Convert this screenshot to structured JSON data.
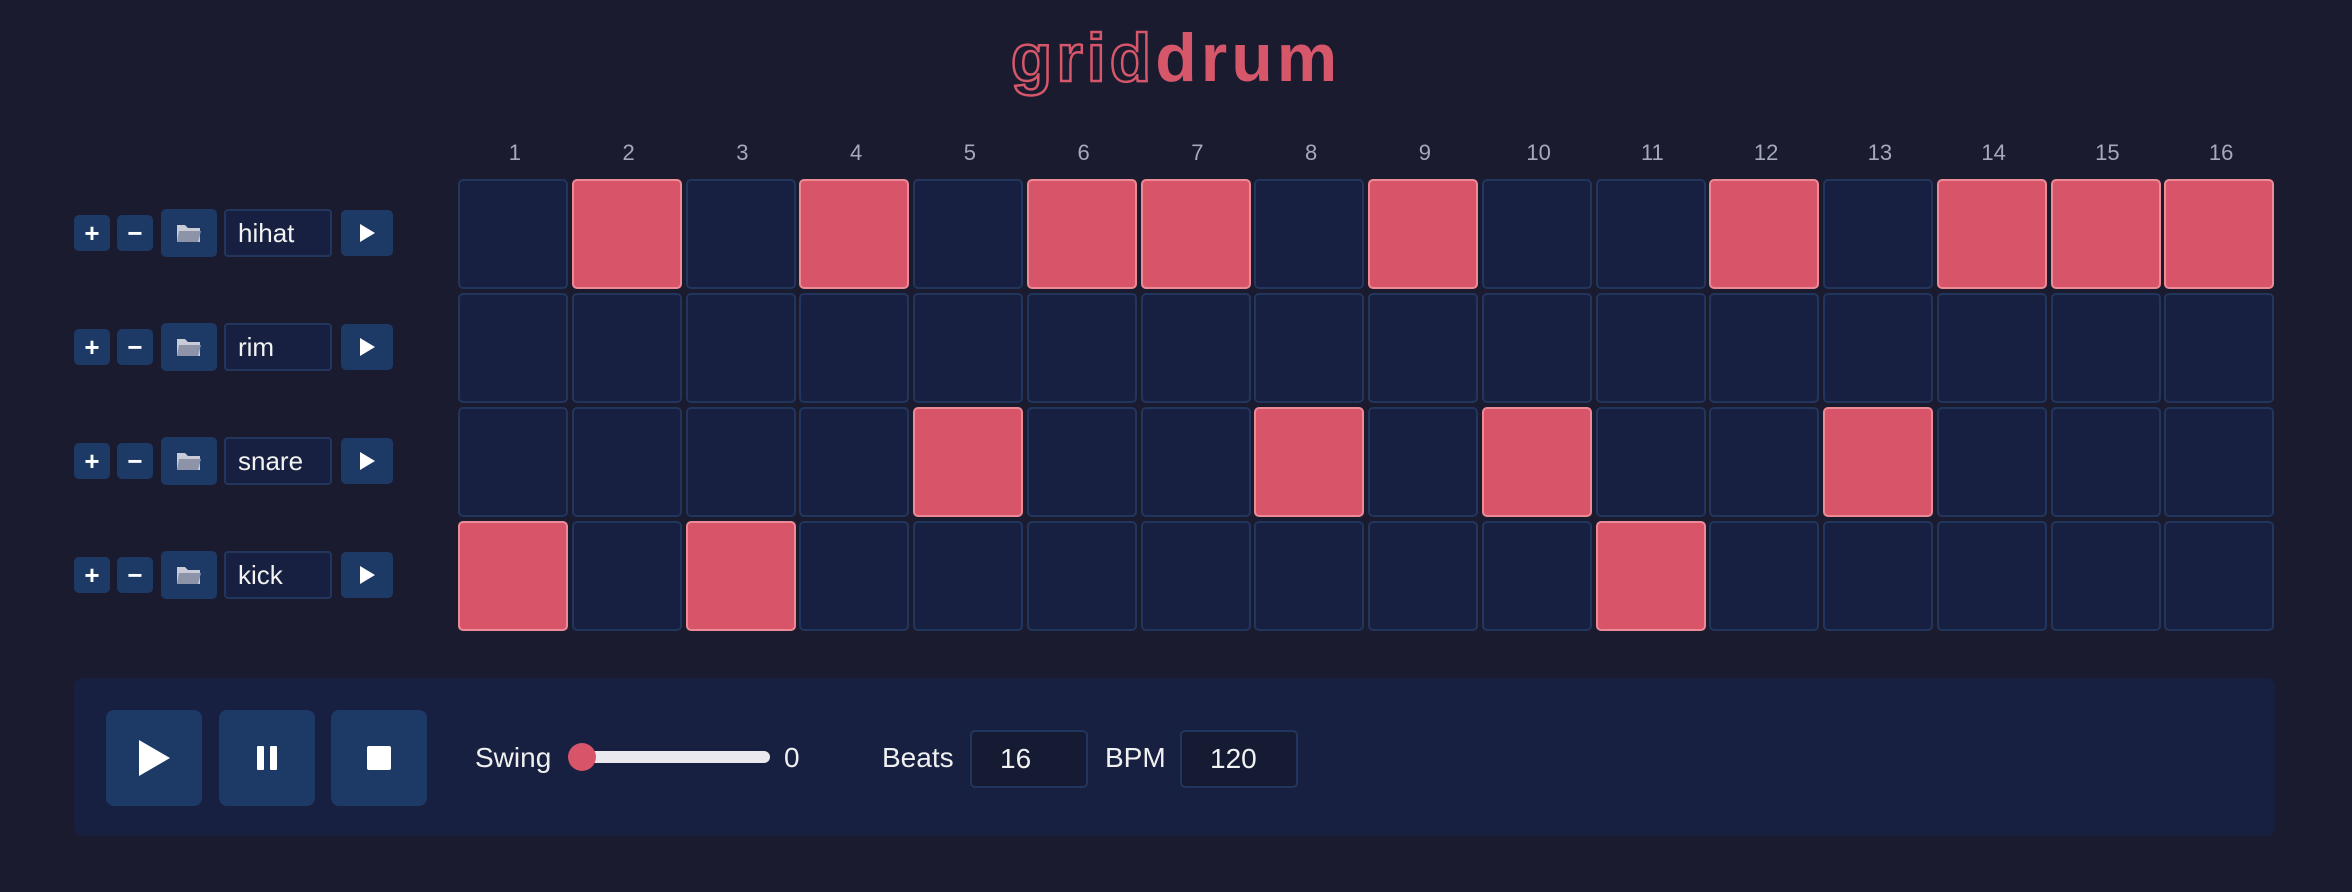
{
  "app": {
    "title_outline": "grid",
    "title_solid": "drum",
    "accent_color": "#d6566a"
  },
  "beats": [
    "1",
    "2",
    "3",
    "4",
    "5",
    "6",
    "7",
    "8",
    "9",
    "10",
    "11",
    "12",
    "13",
    "14",
    "15",
    "16"
  ],
  "tracks": [
    {
      "name": "hihat",
      "steps": [
        0,
        1,
        0,
        1,
        0,
        1,
        1,
        0,
        1,
        0,
        0,
        1,
        0,
        1,
        1,
        1
      ]
    },
    {
      "name": "rim",
      "steps": [
        0,
        0,
        0,
        0,
        0,
        0,
        0,
        0,
        0,
        0,
        0,
        0,
        0,
        0,
        0,
        0
      ]
    },
    {
      "name": "snare",
      "steps": [
        0,
        0,
        0,
        0,
        1,
        0,
        0,
        1,
        0,
        1,
        0,
        0,
        1,
        0,
        0,
        0
      ]
    },
    {
      "name": "kick",
      "steps": [
        1,
        0,
        1,
        0,
        0,
        0,
        0,
        0,
        0,
        0,
        1,
        0,
        0,
        0,
        0,
        0
      ]
    }
  ],
  "track_controls": {
    "add_label": "+",
    "remove_label": "−",
    "folder_icon": "folder-icon",
    "play_icon": "play-icon"
  },
  "transport": {
    "play_icon": "play-icon",
    "pause_icon": "pause-icon",
    "stop_icon": "stop-icon",
    "swing_label": "Swing",
    "swing_value": "0",
    "swing_fraction": 0,
    "beats_label": "Beats",
    "beats_value": "16",
    "bpm_label": "BPM",
    "bpm_value": "120"
  }
}
